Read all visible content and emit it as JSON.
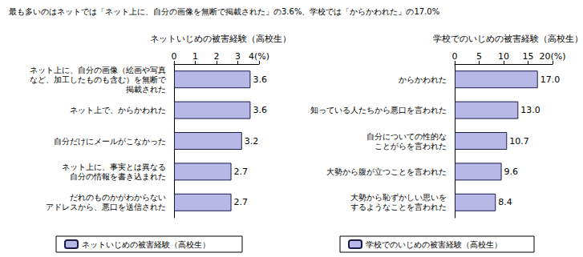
{
  "title": "最も多いのはネットでは「ネット上に、自分の画像を無断で掲載された」の3.6%、学校では「からかわれた」の17.0%",
  "chart_data": [
    {
      "type": "bar",
      "title": "ネットいじめの被害経験（高校生）",
      "orientation": "horizontal",
      "categories": [
        "ネット上に、自分の画像（絵画や写真\nなど、加工したものも含む）を無断で\n掲載された",
        "ネット上で、からかわれた",
        "自分だけにメールがこなかった",
        "ネット上に、事実とは異なる\n自分の情報を書き込まれた",
        "だれのものかがわからない\nアドレスから、悪口を送信された"
      ],
      "series": [
        {
          "name": "ネットいじめの被害経験（高校生）",
          "color": "#b8b8e6",
          "values": [
            3.6,
            3.6,
            3.2,
            2.7,
            2.7
          ]
        }
      ],
      "xlim": [
        0,
        4
      ],
      "xticks": [
        0,
        1,
        2,
        3,
        {
          "value": 4,
          "label": "4(%)"
        }
      ],
      "data_labels": true,
      "grid": false,
      "legend": "bottom"
    },
    {
      "type": "bar",
      "title": "学校でのいじめの被害経験（高校生）",
      "orientation": "horizontal",
      "categories": [
        "からかわれた",
        "知っている人たちから悪口を言われた",
        "自分についての性的な\nことがらを言われた",
        "大勢から腹が立つことを言われた",
        "大勢から恥ずかしい思いを\nするようなことを言われた"
      ],
      "series": [
        {
          "name": "学校でのいじめの被害経験（高校生）",
          "color": "#b8b8e6",
          "values": [
            17.0,
            13.0,
            10.7,
            9.6,
            8.4
          ],
          "value_labels": [
            "17.0",
            "13.0",
            "10.7",
            "9.6",
            "8.4"
          ]
        }
      ],
      "xlim": [
        0,
        20
      ],
      "xticks": [
        0,
        5,
        10,
        15,
        {
          "value": 20,
          "label": "20(%)"
        }
      ],
      "data_labels": true,
      "grid": false,
      "legend": "bottom"
    }
  ]
}
